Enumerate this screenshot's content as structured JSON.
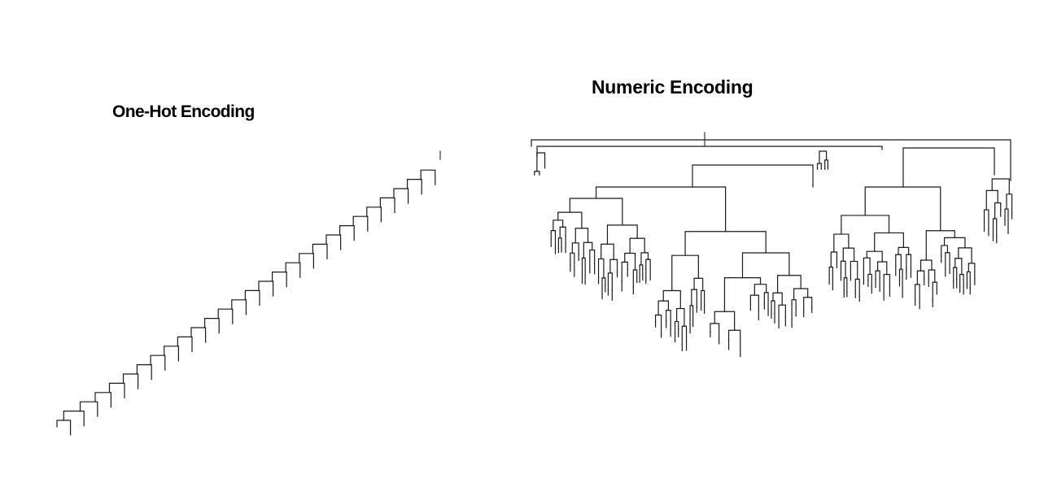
{
  "panels": {
    "left": {
      "title": "One-Hot Encoding"
    },
    "right": {
      "title": "Numeric Encoding"
    }
  },
  "colors": {
    "line": "#1a1a1a",
    "root": "#3a2a6e",
    "background": "#ffffff"
  }
}
